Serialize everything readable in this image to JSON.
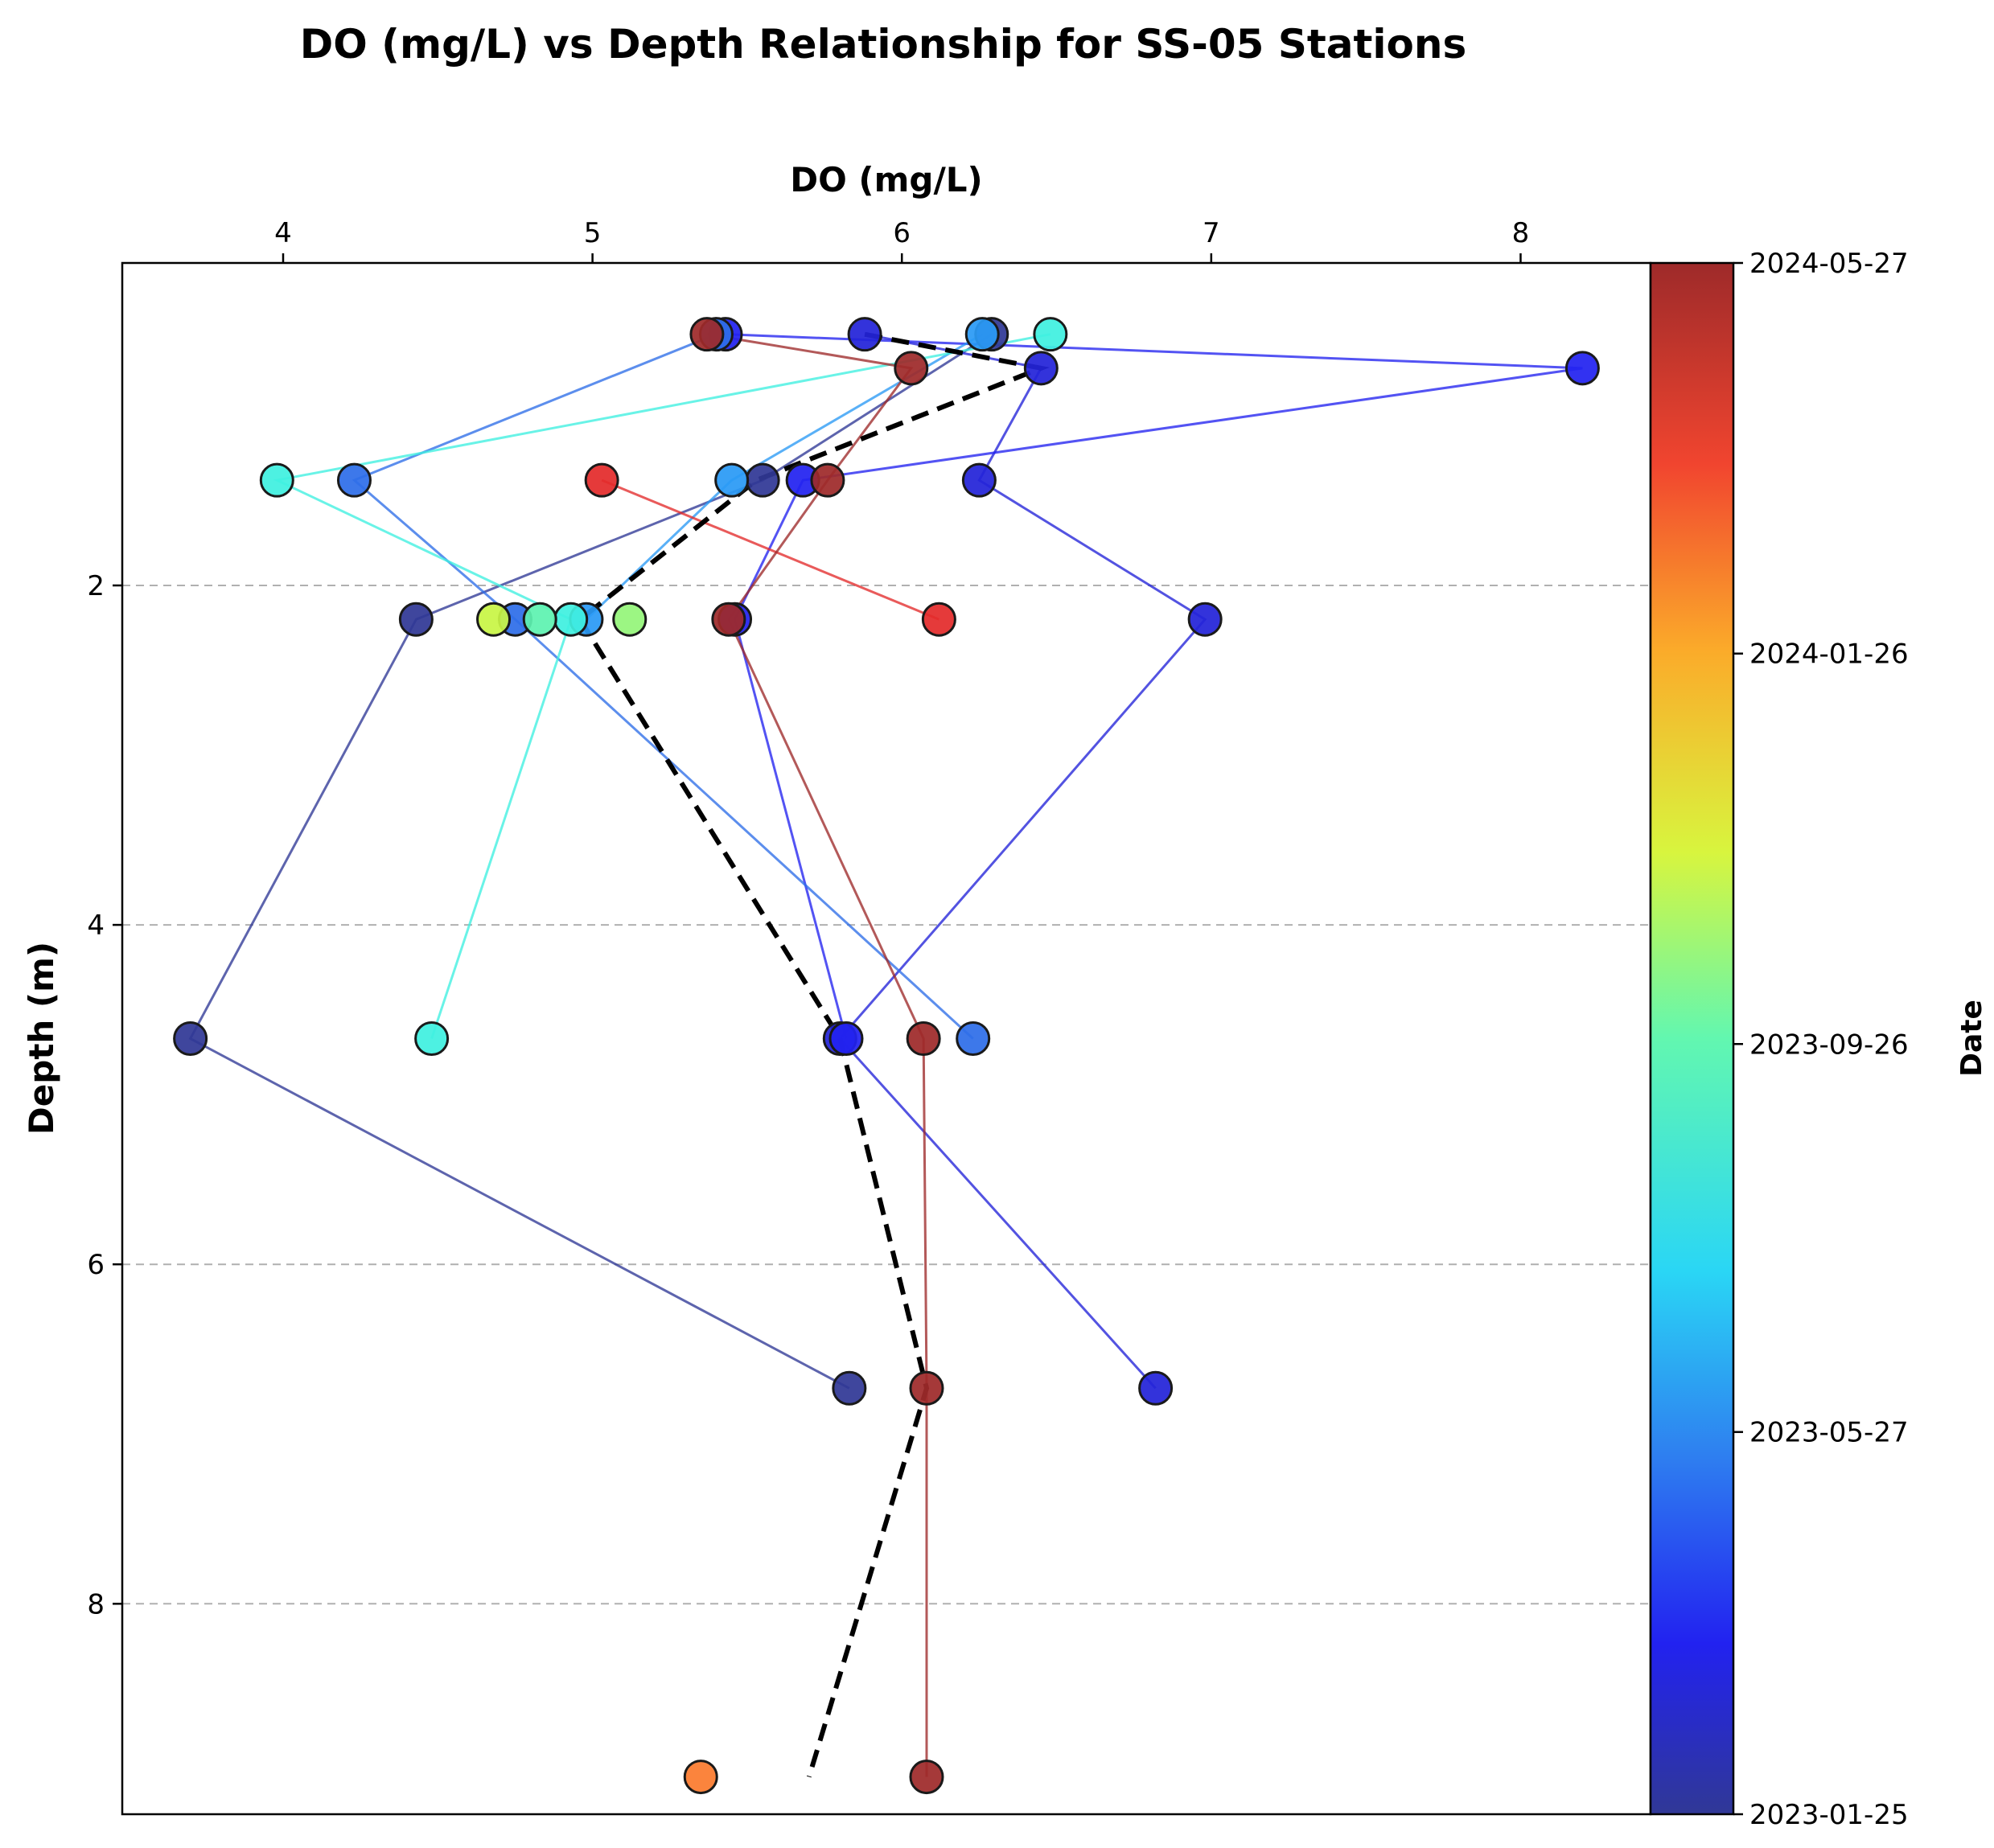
{
  "chart_data": {
    "type": "scatter",
    "title": "DO (mg/L) vs Depth Relationship for SS-05 Stations",
    "xlabel": "DO (mg/L)",
    "ylabel": "Depth (m)",
    "xlim": [
      3.48,
      8.42
    ],
    "ylim": [
      9.24,
      0.1
    ],
    "x_ticks": [
      "4",
      "5",
      "6",
      "7",
      "8"
    ],
    "y_ticks": [
      "2",
      "4",
      "6",
      "8"
    ],
    "x_axis_position": "top",
    "y_axis_inverted": true,
    "grid": "horizontal dashed",
    "colorbar": {
      "label": "Date",
      "colormap": "jet",
      "ticks": [
        "2024-05-27",
        "2024-01-26",
        "2023-09-26",
        "2023-05-27",
        "2023-01-25"
      ]
    },
    "trend_line": {
      "style": "black dashed",
      "points": [
        {
          "x": 5.88,
          "y": 0.52
        },
        {
          "x": 6.45,
          "y": 0.72
        },
        {
          "x": 5.53,
          "y": 1.38
        },
        {
          "x": 4.96,
          "y": 2.2
        },
        {
          "x": 5.8,
          "y": 4.67
        },
        {
          "x": 6.08,
          "y": 6.73
        },
        {
          "x": 5.7,
          "y": 9.02
        }
      ]
    },
    "series": [
      {
        "date": "2023-01-25",
        "color": "#303896",
        "points": [
          {
            "x": 6.29,
            "y": 0.52
          },
          {
            "x": 5.55,
            "y": 1.38
          },
          {
            "x": 4.43,
            "y": 2.2
          },
          {
            "x": 3.7,
            "y": 4.67
          },
          {
            "x": 5.83,
            "y": 6.73
          }
        ]
      },
      {
        "date": "2023-03-10",
        "color": "#2323d8",
        "points": [
          {
            "x": 5.88,
            "y": 0.52
          },
          {
            "x": 6.45,
            "y": 0.72
          },
          {
            "x": 6.25,
            "y": 1.38
          },
          {
            "x": 6.98,
            "y": 2.2
          },
          {
            "x": 5.8,
            "y": 4.67
          },
          {
            "x": 6.82,
            "y": 6.73
          }
        ]
      },
      {
        "date": "2023-04-01",
        "color": "#2222f0",
        "points": [
          {
            "x": 5.43,
            "y": 0.52
          },
          {
            "x": 8.2,
            "y": 0.72
          },
          {
            "x": 5.68,
            "y": 1.38
          },
          {
            "x": 5.46,
            "y": 2.2
          },
          {
            "x": 5.82,
            "y": 4.67
          }
        ]
      },
      {
        "date": "2023-05-27",
        "color": "#2e6ee8",
        "points": [
          {
            "x": 5.4,
            "y": 0.52
          },
          {
            "x": 4.23,
            "y": 1.38
          },
          {
            "x": 4.75,
            "y": 2.2
          },
          {
            "x": 6.23,
            "y": 4.67
          }
        ]
      },
      {
        "date": "2023-06-20",
        "color": "#2a9af5",
        "points": [
          {
            "x": 6.26,
            "y": 0.52
          },
          {
            "x": 5.45,
            "y": 1.38
          },
          {
            "x": 4.98,
            "y": 2.2
          }
        ]
      },
      {
        "date": "2023-08-05",
        "color": "#3ff0e0",
        "points": [
          {
            "x": 6.48,
            "y": 0.52
          },
          {
            "x": 3.98,
            "y": 1.38
          },
          {
            "x": 4.93,
            "y": 2.2
          },
          {
            "x": 4.48,
            "y": 4.67
          }
        ]
      },
      {
        "date": "2023-09-15",
        "color": "#5ef2b0",
        "points": [
          {
            "x": 4.83,
            "y": 2.2
          }
        ]
      },
      {
        "date": "2023-10-20",
        "color": "#95f57a",
        "points": [
          {
            "x": 5.12,
            "y": 2.2
          }
        ]
      },
      {
        "date": "2023-11-25",
        "color": "#c8f545",
        "points": [
          {
            "x": 4.68,
            "y": 2.2
          }
        ]
      },
      {
        "date": "2024-02-20",
        "color": "#fb7b2e",
        "points": [
          {
            "x": 5.35,
            "y": 9.02
          }
        ]
      },
      {
        "date": "2024-04-15",
        "color": "#e32b2b",
        "points": [
          {
            "x": 5.03,
            "y": 1.38
          },
          {
            "x": 6.12,
            "y": 2.2
          }
        ]
      },
      {
        "date": "2024-05-27",
        "color": "#9e2a2a",
        "points": [
          {
            "x": 5.37,
            "y": 0.52
          },
          {
            "x": 6.03,
            "y": 0.72
          },
          {
            "x": 5.76,
            "y": 1.38
          },
          {
            "x": 5.44,
            "y": 2.2
          },
          {
            "x": 6.07,
            "y": 4.67
          },
          {
            "x": 6.08,
            "y": 6.73
          },
          {
            "x": 6.08,
            "y": 9.02
          }
        ]
      }
    ]
  }
}
